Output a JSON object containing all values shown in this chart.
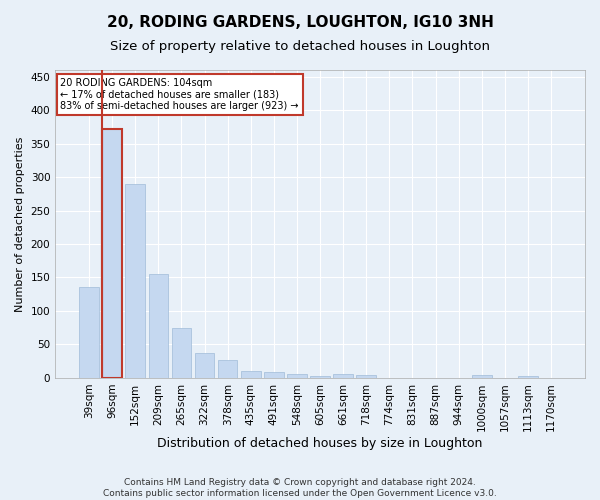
{
  "title1": "20, RODING GARDENS, LOUGHTON, IG10 3NH",
  "title2": "Size of property relative to detached houses in Loughton",
  "xlabel": "Distribution of detached houses by size in Loughton",
  "ylabel": "Number of detached properties",
  "categories": [
    "39sqm",
    "96sqm",
    "152sqm",
    "209sqm",
    "265sqm",
    "322sqm",
    "378sqm",
    "435sqm",
    "491sqm",
    "548sqm",
    "605sqm",
    "661sqm",
    "718sqm",
    "774sqm",
    "831sqm",
    "887sqm",
    "944sqm",
    "1000sqm",
    "1057sqm",
    "1113sqm",
    "1170sqm"
  ],
  "values": [
    136,
    372,
    290,
    155,
    74,
    37,
    26,
    10,
    9,
    6,
    3,
    5,
    4,
    0,
    0,
    0,
    0,
    4,
    0,
    3,
    0
  ],
  "bar_color": "#c5d8f0",
  "bar_edge_color": "#a0bcd8",
  "highlight_bar_index": 1,
  "highlight_edge_color": "#c0392b",
  "vline_color": "#c0392b",
  "annotation_text": "20 RODING GARDENS: 104sqm\n← 17% of detached houses are smaller (183)\n83% of semi-detached houses are larger (923) →",
  "annotation_box_color": "white",
  "annotation_box_edge_color": "#c0392b",
  "ylim": [
    0,
    460
  ],
  "yticks": [
    0,
    50,
    100,
    150,
    200,
    250,
    300,
    350,
    400,
    450
  ],
  "footer1": "Contains HM Land Registry data © Crown copyright and database right 2024.",
  "footer2": "Contains public sector information licensed under the Open Government Licence v3.0.",
  "background_color": "#e8f0f8",
  "plot_background_color": "#e8f0f8",
  "grid_color": "white",
  "title1_fontsize": 11,
  "title2_fontsize": 9.5,
  "xlabel_fontsize": 9,
  "ylabel_fontsize": 8,
  "tick_fontsize": 7.5,
  "footer_fontsize": 6.5
}
